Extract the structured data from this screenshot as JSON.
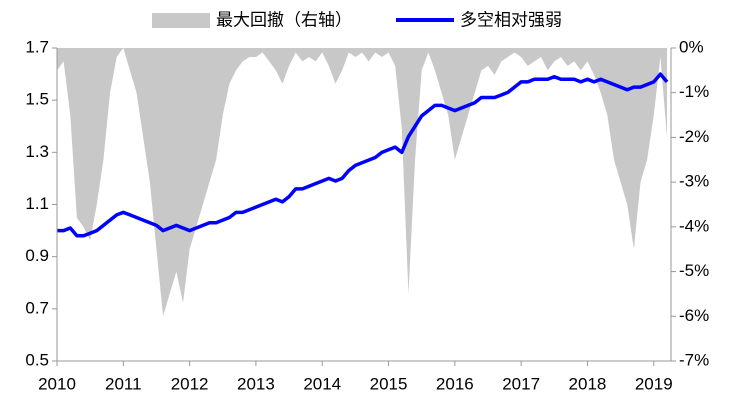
{
  "chart_data": {
    "type": "line",
    "x": [
      2010.0,
      2010.1,
      2010.2,
      2010.3,
      2010.4,
      2010.5,
      2010.6,
      2010.7,
      2010.8,
      2010.9,
      2011.0,
      2011.1,
      2011.2,
      2011.3,
      2011.4,
      2011.5,
      2011.6,
      2011.7,
      2011.8,
      2011.9,
      2012.0,
      2012.1,
      2012.2,
      2012.3,
      2012.4,
      2012.5,
      2012.6,
      2012.7,
      2012.8,
      2012.9,
      2013.0,
      2013.1,
      2013.2,
      2013.3,
      2013.4,
      2013.5,
      2013.6,
      2013.7,
      2013.8,
      2013.9,
      2014.0,
      2014.1,
      2014.2,
      2014.3,
      2014.4,
      2014.5,
      2014.6,
      2014.7,
      2014.8,
      2014.9,
      2015.0,
      2015.1,
      2015.2,
      2015.3,
      2015.4,
      2015.5,
      2015.6,
      2015.7,
      2015.8,
      2015.9,
      2016.0,
      2016.1,
      2016.2,
      2016.3,
      2016.4,
      2016.5,
      2016.6,
      2016.7,
      2016.8,
      2016.9,
      2017.0,
      2017.1,
      2017.2,
      2017.3,
      2017.4,
      2017.5,
      2017.6,
      2017.7,
      2017.8,
      2017.9,
      2018.0,
      2018.1,
      2018.2,
      2018.3,
      2018.4,
      2018.5,
      2018.6,
      2018.7,
      2018.8,
      2018.9,
      2019.0,
      2019.1,
      2019.2
    ],
    "series": [
      {
        "name": "最大回撤（右轴）",
        "type": "area",
        "axis": "y2",
        "color": "#c8c8c8",
        "values": [
          -0.5,
          -0.3,
          -1.5,
          -3.8,
          -4.0,
          -4.3,
          -3.5,
          -2.5,
          -1.0,
          -0.2,
          0,
          -0.5,
          -1.0,
          -2.0,
          -3.0,
          -4.5,
          -6.0,
          -5.5,
          -5.0,
          -5.7,
          -4.5,
          -4.0,
          -3.5,
          -3.0,
          -2.5,
          -1.5,
          -0.8,
          -0.5,
          -0.3,
          -0.2,
          -0.2,
          -0.1,
          -0.3,
          -0.5,
          -0.8,
          -0.4,
          -0.1,
          -0.3,
          -0.2,
          -0.3,
          -0.1,
          -0.4,
          -0.8,
          -0.5,
          -0.1,
          -0.2,
          -0.1,
          -0.3,
          -0.1,
          -0.2,
          -0.1,
          -0.4,
          -1.8,
          -5.5,
          -2.5,
          -0.5,
          -0.1,
          -0.5,
          -1.0,
          -1.5,
          -2.5,
          -2.0,
          -1.5,
          -1.0,
          -0.5,
          -0.4,
          -0.6,
          -0.3,
          -0.2,
          -0.1,
          -0.2,
          -0.4,
          -0.3,
          -0.2,
          -0.5,
          -0.3,
          -0.2,
          -0.4,
          -0.3,
          -0.5,
          -0.3,
          -0.6,
          -1.0,
          -1.5,
          -2.5,
          -3.0,
          -3.5,
          -4.5,
          -3.0,
          -2.5,
          -1.5,
          -0.2,
          -2.0
        ]
      },
      {
        "name": "多空相对强弱",
        "type": "line",
        "color": "#0000ff",
        "values": [
          1.0,
          1.0,
          1.01,
          0.98,
          0.98,
          0.99,
          1.0,
          1.02,
          1.04,
          1.06,
          1.07,
          1.06,
          1.05,
          1.04,
          1.03,
          1.02,
          1.0,
          1.01,
          1.02,
          1.01,
          1.0,
          1.01,
          1.02,
          1.03,
          1.03,
          1.04,
          1.05,
          1.07,
          1.07,
          1.08,
          1.09,
          1.1,
          1.11,
          1.12,
          1.11,
          1.13,
          1.16,
          1.16,
          1.17,
          1.18,
          1.19,
          1.2,
          1.19,
          1.2,
          1.23,
          1.25,
          1.26,
          1.27,
          1.28,
          1.3,
          1.31,
          1.32,
          1.3,
          1.36,
          1.4,
          1.44,
          1.46,
          1.48,
          1.48,
          1.47,
          1.46,
          1.47,
          1.48,
          1.49,
          1.51,
          1.51,
          1.51,
          1.52,
          1.53,
          1.55,
          1.57,
          1.57,
          1.58,
          1.58,
          1.58,
          1.59,
          1.58,
          1.58,
          1.58,
          1.57,
          1.58,
          1.57,
          1.58,
          1.57,
          1.56,
          1.55,
          1.54,
          1.55,
          1.55,
          1.56,
          1.57,
          1.6,
          1.57
        ]
      }
    ],
    "xlim": [
      2010,
      2019.26
    ],
    "xticks": [
      2010,
      2011,
      2012,
      2013,
      2014,
      2015,
      2016,
      2017,
      2018,
      2019
    ],
    "ylim": [
      0.5,
      1.7
    ],
    "yticks": [
      0.5,
      0.7,
      0.9,
      1.1,
      1.3,
      1.5,
      1.7
    ],
    "y2lim": [
      -7,
      0
    ],
    "y2ticks": [
      {
        "value": 0,
        "label": "0%"
      },
      {
        "value": -1,
        "label": "-1%"
      },
      {
        "value": -2,
        "label": "-2%"
      },
      {
        "value": -3,
        "label": "-3%"
      },
      {
        "value": -4,
        "label": "-4%"
      },
      {
        "value": -5,
        "label": "-5%"
      },
      {
        "value": -6,
        "label": "-6%"
      },
      {
        "value": -7,
        "label": "-7%"
      }
    ],
    "legend": "top"
  }
}
